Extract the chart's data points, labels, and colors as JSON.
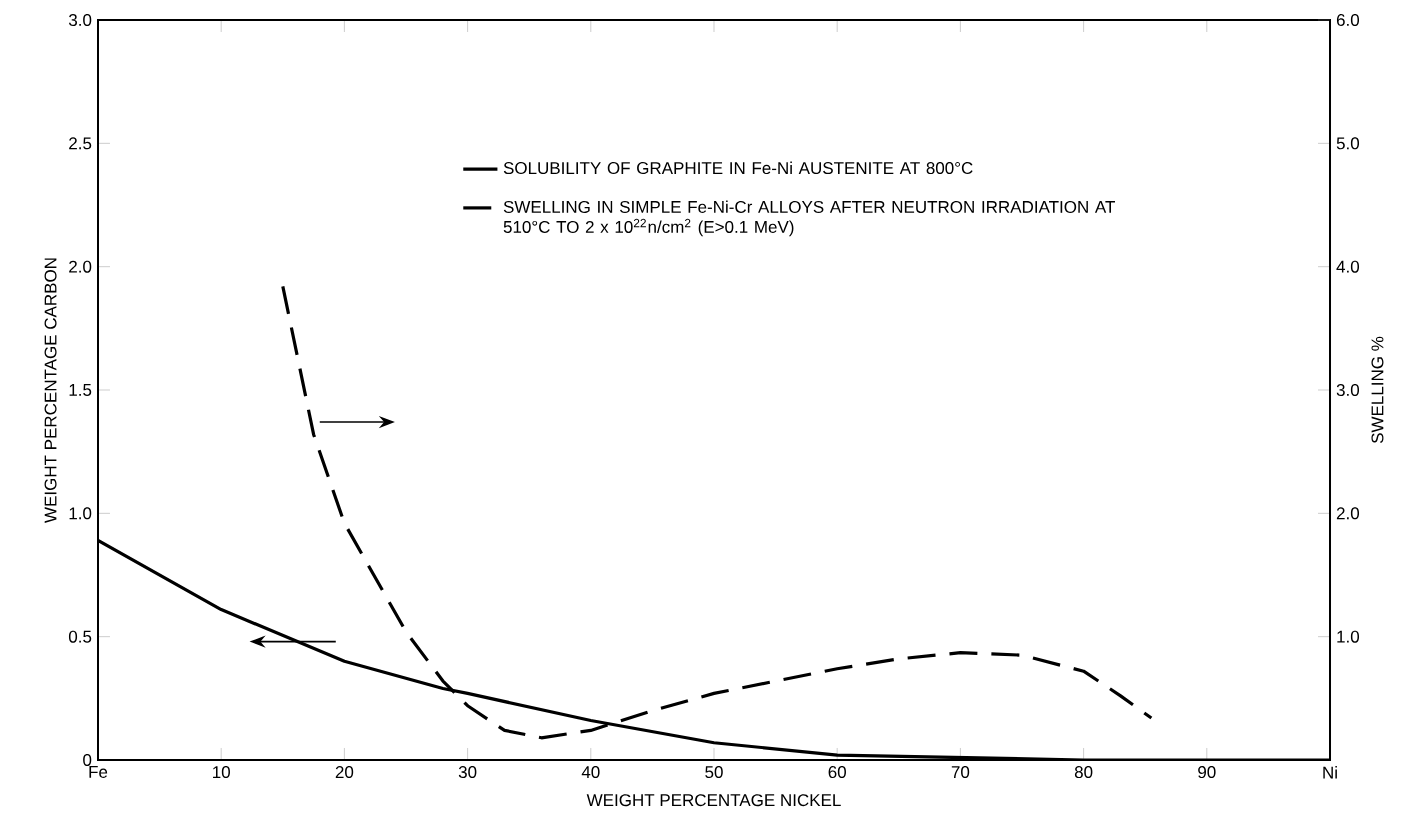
{
  "chart_data": {
    "type": "line",
    "xlabel": "WEIGHT PERCENTAGE NICKEL",
    "ylabel": "WEIGHT PERCENTAGE CARBON",
    "y2label": "SWELLING %",
    "xlim": [
      0,
      100
    ],
    "ylim": [
      0,
      3
    ],
    "y2lim": [
      0,
      6
    ],
    "xticks": [
      {
        "value": 0,
        "label": "Fe"
      },
      10,
      20,
      30,
      40,
      50,
      60,
      70,
      80,
      90,
      {
        "value": 100,
        "label": "Ni"
      }
    ],
    "yticks": [
      0,
      0.5,
      {
        "value": 1,
        "label": "1.0"
      },
      1.5,
      {
        "value": 2,
        "label": "2.0"
      },
      2.5,
      {
        "value": 3,
        "label": "3.0"
      }
    ],
    "y2ticks": [
      {
        "value": 1,
        "label": "1.0"
      },
      {
        "value": 2,
        "label": "2.0"
      },
      {
        "value": 3,
        "label": "3.0"
      },
      {
        "value": 4,
        "label": "4.0"
      },
      {
        "value": 5,
        "label": "5.0"
      },
      {
        "value": 6,
        "label": "6.0"
      }
    ],
    "grid": false,
    "legend": "top right",
    "marker": "none",
    "series": [
      {
        "name": "SOLUBILITY OF GRAPHITE IN Fe-Ni AUSTENITE AT 800°C",
        "color": "#000000",
        "line_style": "solid",
        "x": [
          0,
          10,
          20,
          28,
          30,
          40,
          50,
          60,
          70,
          80,
          90,
          100
        ],
        "values": [
          0.89,
          0.61,
          0.4,
          0.29,
          0.27,
          0.16,
          0.07,
          0.02,
          0.01,
          0,
          0,
          0
        ]
      },
      {
        "name": "SWELLING IN SIMPLE Fe-Ni-Cr ALLOYS AFTER NEUTRON IRRADIATION AT 510°C TO 2 x 10$^{22}$n/cm$^{2}$ (E>0.1 MeV)",
        "color": "#000000",
        "line_style": "dashed",
        "axis": "y2",
        "x": [
          15,
          17.5,
          20,
          25,
          28,
          30,
          33,
          36,
          40,
          45,
          50,
          55,
          60,
          65,
          70,
          75,
          80,
          83,
          85.5
        ],
        "values": [
          3.84,
          2.64,
          1.92,
          1.04,
          0.64,
          0.44,
          0.24,
          0.18,
          0.24,
          0.4,
          0.54,
          0.64,
          0.74,
          0.82,
          0.87,
          0.85,
          0.72,
          0.52,
          0.34
        ]
      }
    ]
  }
}
